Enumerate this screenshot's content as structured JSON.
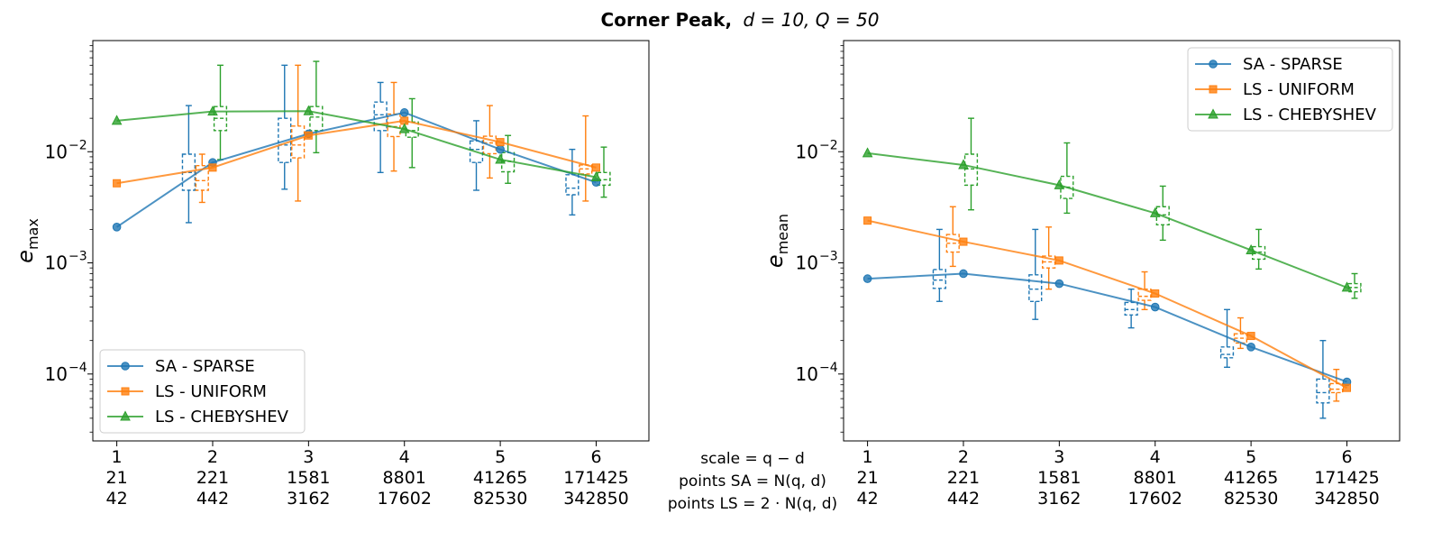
{
  "title": {
    "bold": "Corner Peak,",
    "math": "d = 10, Q = 50"
  },
  "shared_xlabel": {
    "line1": "scale = q − d",
    "line2": "points SA = N(q, d)",
    "line3": "points LS = 2 · N(q, d)"
  },
  "legend_labels": [
    "SA - SPARSE",
    "LS - UNIFORM",
    "LS - CHEBYSHEV"
  ],
  "colors": {
    "sa_sparse": "#1f77b4",
    "ls_uniform": "#ff7f0e",
    "ls_chebyshev": "#2ca02c"
  },
  "chart_data": [
    {
      "type": "line",
      "name": "emax",
      "ylabel_base": "e",
      "ylabel_sub": "max",
      "yscale": "log",
      "ylim": [
        2.5e-05,
        0.1
      ],
      "yticks": [
        {
          "value": 0.01,
          "base": "10",
          "exp": "−2"
        },
        {
          "value": 0.001,
          "base": "10",
          "exp": "−3"
        },
        {
          "value": 0.0001,
          "base": "10",
          "exp": "−4"
        }
      ],
      "xlim": [
        0.75,
        6.55
      ],
      "x": [
        1,
        2,
        3,
        4,
        5,
        6
      ],
      "x_ticklabels": [
        [
          "1",
          "21",
          "42"
        ],
        [
          "2",
          "221",
          "442"
        ],
        [
          "3",
          "1581",
          "3162"
        ],
        [
          "4",
          "8801",
          "17602"
        ],
        [
          "5",
          "41265",
          "82530"
        ],
        [
          "6",
          "171425",
          "342850"
        ]
      ],
      "legend_position": "lower-left",
      "series": [
        {
          "name": "SA - SPARSE",
          "marker": "circle",
          "y": [
            0.0021,
            0.008,
            0.0145,
            0.0225,
            0.0105,
            0.0053
          ],
          "boxes": [
            {
              "x": 2,
              "whislo": 0.0023,
              "q1": 0.0045,
              "med": 0.0065,
              "q3": 0.0095,
              "whishi": 0.026
            },
            {
              "x": 3,
              "whislo": 0.0046,
              "q1": 0.008,
              "med": 0.0115,
              "q3": 0.02,
              "whishi": 0.06
            },
            {
              "x": 4,
              "whislo": 0.0065,
              "q1": 0.0155,
              "med": 0.0215,
              "q3": 0.028,
              "whishi": 0.042
            },
            {
              "x": 5,
              "whislo": 0.0045,
              "q1": 0.008,
              "med": 0.0105,
              "q3": 0.0125,
              "whishi": 0.019
            },
            {
              "x": 6,
              "whislo": 0.0027,
              "q1": 0.0041,
              "med": 0.0047,
              "q3": 0.0062,
              "whishi": 0.0105
            }
          ]
        },
        {
          "name": "LS - UNIFORM",
          "marker": "square",
          "y": [
            0.0052,
            0.0072,
            0.014,
            0.019,
            0.0122,
            0.0072
          ],
          "boxes": [
            {
              "x": 2,
              "whislo": 0.0035,
              "q1": 0.0045,
              "med": 0.0055,
              "q3": 0.0075,
              "whishi": 0.0095
            },
            {
              "x": 3,
              "whislo": 0.0036,
              "q1": 0.0088,
              "med": 0.0115,
              "q3": 0.017,
              "whishi": 0.06
            },
            {
              "x": 4,
              "whislo": 0.0067,
              "q1": 0.0137,
              "med": 0.0168,
              "q3": 0.0218,
              "whishi": 0.042
            },
            {
              "x": 5,
              "whislo": 0.0058,
              "q1": 0.0096,
              "med": 0.012,
              "q3": 0.0138,
              "whishi": 0.026
            },
            {
              "x": 6,
              "whislo": 0.0036,
              "q1": 0.0063,
              "med": 0.007,
              "q3": 0.0076,
              "whishi": 0.021
            }
          ]
        },
        {
          "name": "LS - CHEBYSHEV",
          "marker": "triangle",
          "y": [
            0.019,
            0.023,
            0.0232,
            0.016,
            0.0085,
            0.0059
          ],
          "boxes": [
            {
              "x": 2,
              "whislo": 0.0085,
              "q1": 0.0155,
              "med": 0.02,
              "q3": 0.0255,
              "whishi": 0.06
            },
            {
              "x": 3,
              "whislo": 0.0098,
              "q1": 0.0155,
              "med": 0.0205,
              "q3": 0.0255,
              "whishi": 0.065
            },
            {
              "x": 4,
              "whislo": 0.0072,
              "q1": 0.0135,
              "med": 0.0155,
              "q3": 0.0185,
              "whishi": 0.03
            },
            {
              "x": 5,
              "whislo": 0.0052,
              "q1": 0.0066,
              "med": 0.0082,
              "q3": 0.0098,
              "whishi": 0.014
            },
            {
              "x": 6,
              "whislo": 0.0039,
              "q1": 0.005,
              "med": 0.0056,
              "q3": 0.0065,
              "whishi": 0.011
            }
          ]
        }
      ]
    },
    {
      "type": "line",
      "name": "emean",
      "ylabel_base": "e",
      "ylabel_sub": "mean",
      "yscale": "log",
      "ylim": [
        2.5e-05,
        0.1
      ],
      "yticks": [
        {
          "value": 0.01,
          "base": "10",
          "exp": "−2"
        },
        {
          "value": 0.001,
          "base": "10",
          "exp": "−3"
        },
        {
          "value": 0.0001,
          "base": "10",
          "exp": "−4"
        }
      ],
      "xlim": [
        0.75,
        6.55
      ],
      "x": [
        1,
        2,
        3,
        4,
        5,
        6
      ],
      "x_ticklabels": [
        [
          "1",
          "21",
          "42"
        ],
        [
          "2",
          "221",
          "442"
        ],
        [
          "3",
          "1581",
          "3162"
        ],
        [
          "4",
          "8801",
          "17602"
        ],
        [
          "5",
          "41265",
          "82530"
        ],
        [
          "6",
          "171425",
          "342850"
        ]
      ],
      "legend_position": "top-right",
      "series": [
        {
          "name": "SA - SPARSE",
          "marker": "circle",
          "y": [
            0.00072,
            0.0008,
            0.00065,
            0.0004,
            0.000175,
            8.5e-05
          ],
          "boxes": [
            {
              "x": 2,
              "whislo": 0.00045,
              "q1": 0.00059,
              "med": 0.0007,
              "q3": 0.00087,
              "whishi": 0.002
            },
            {
              "x": 3,
              "whislo": 0.00031,
              "q1": 0.00045,
              "med": 0.00058,
              "q3": 0.00078,
              "whishi": 0.002
            },
            {
              "x": 4,
              "whislo": 0.00026,
              "q1": 0.00034,
              "med": 0.00038,
              "q3": 0.00044,
              "whishi": 0.00058
            },
            {
              "x": 5,
              "whislo": 0.000115,
              "q1": 0.00014,
              "med": 0.00015,
              "q3": 0.000175,
              "whishi": 0.00038
            },
            {
              "x": 6,
              "whislo": 4e-05,
              "q1": 5.5e-05,
              "med": 6.8e-05,
              "q3": 9e-05,
              "whishi": 0.0002
            }
          ]
        },
        {
          "name": "LS - UNIFORM",
          "marker": "square",
          "y": [
            0.0024,
            0.00155,
            0.00105,
            0.00053,
            0.00022,
            7.5e-05
          ],
          "boxes": [
            {
              "x": 2,
              "whislo": 0.00093,
              "q1": 0.00125,
              "med": 0.0015,
              "q3": 0.0018,
              "whishi": 0.0032
            },
            {
              "x": 3,
              "whislo": 0.00058,
              "q1": 0.0009,
              "med": 0.00102,
              "q3": 0.00115,
              "whishi": 0.0021
            },
            {
              "x": 4,
              "whislo": 0.00038,
              "q1": 0.00046,
              "med": 0.0005,
              "q3": 0.00058,
              "whishi": 0.00083
            },
            {
              "x": 5,
              "whislo": 0.00017,
              "q1": 0.00019,
              "med": 0.00021,
              "q3": 0.00023,
              "whishi": 0.00032
            },
            {
              "x": 6,
              "whislo": 5.7e-05,
              "q1": 6.8e-05,
              "med": 7.3e-05,
              "q3": 8.2e-05,
              "whishi": 0.00011
            }
          ]
        },
        {
          "name": "LS - CHEBYSHEV",
          "marker": "triangle",
          "y": [
            0.0097,
            0.0076,
            0.005,
            0.0028,
            0.0013,
            0.0006
          ],
          "boxes": [
            {
              "x": 2,
              "whislo": 0.003,
              "q1": 0.005,
              "med": 0.007,
              "q3": 0.0095,
              "whishi": 0.02
            },
            {
              "x": 3,
              "whislo": 0.0028,
              "q1": 0.0038,
              "med": 0.0048,
              "q3": 0.006,
              "whishi": 0.012
            },
            {
              "x": 4,
              "whislo": 0.0016,
              "q1": 0.0022,
              "med": 0.0027,
              "q3": 0.0032,
              "whishi": 0.0049
            },
            {
              "x": 5,
              "whislo": 0.00088,
              "q1": 0.00108,
              "med": 0.00125,
              "q3": 0.0014,
              "whishi": 0.002
            },
            {
              "x": 6,
              "whislo": 0.00048,
              "q1": 0.00055,
              "med": 0.0006,
              "q3": 0.00065,
              "whishi": 0.0008
            }
          ]
        }
      ]
    }
  ]
}
